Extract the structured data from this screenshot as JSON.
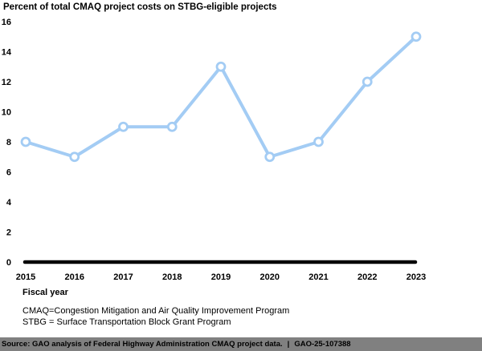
{
  "title": "Percent of total CMAQ project costs on STBG-eligible projects",
  "chart_data": {
    "type": "line",
    "x": [
      2015,
      2016,
      2017,
      2018,
      2019,
      2020,
      2021,
      2022,
      2023
    ],
    "series": [
      {
        "name": "Percent of total CMAQ project costs on STBG-eligible projects",
        "values": [
          8,
          7,
          9,
          9,
          13,
          7,
          8,
          12,
          15
        ]
      }
    ],
    "title": "Percent of total CMAQ project costs on STBG-eligible projects",
    "xlabel": "Fiscal year",
    "ylabel": "",
    "ylim": [
      0,
      16
    ],
    "yticks": [
      0,
      2,
      4,
      6,
      8,
      10,
      12,
      14,
      16
    ],
    "grid": false,
    "legend_position": "none",
    "line_color": "#A3CCF4",
    "marker_style": "open-circle",
    "marker_fill": "#ffffff",
    "axis_color": "#000000"
  },
  "notes": [
    "CMAQ=Congestion Mitigation and Air Quality Improvement Program",
    "STBG = Surface Transportation Block Grant Program"
  ],
  "footer": {
    "source": "Source: GAO analysis of Federal Highway Administration CMAQ project data.",
    "separator": "|",
    "report_id": "GAO-25-107388",
    "bar_color": "#808080",
    "text_color": "#000000"
  }
}
